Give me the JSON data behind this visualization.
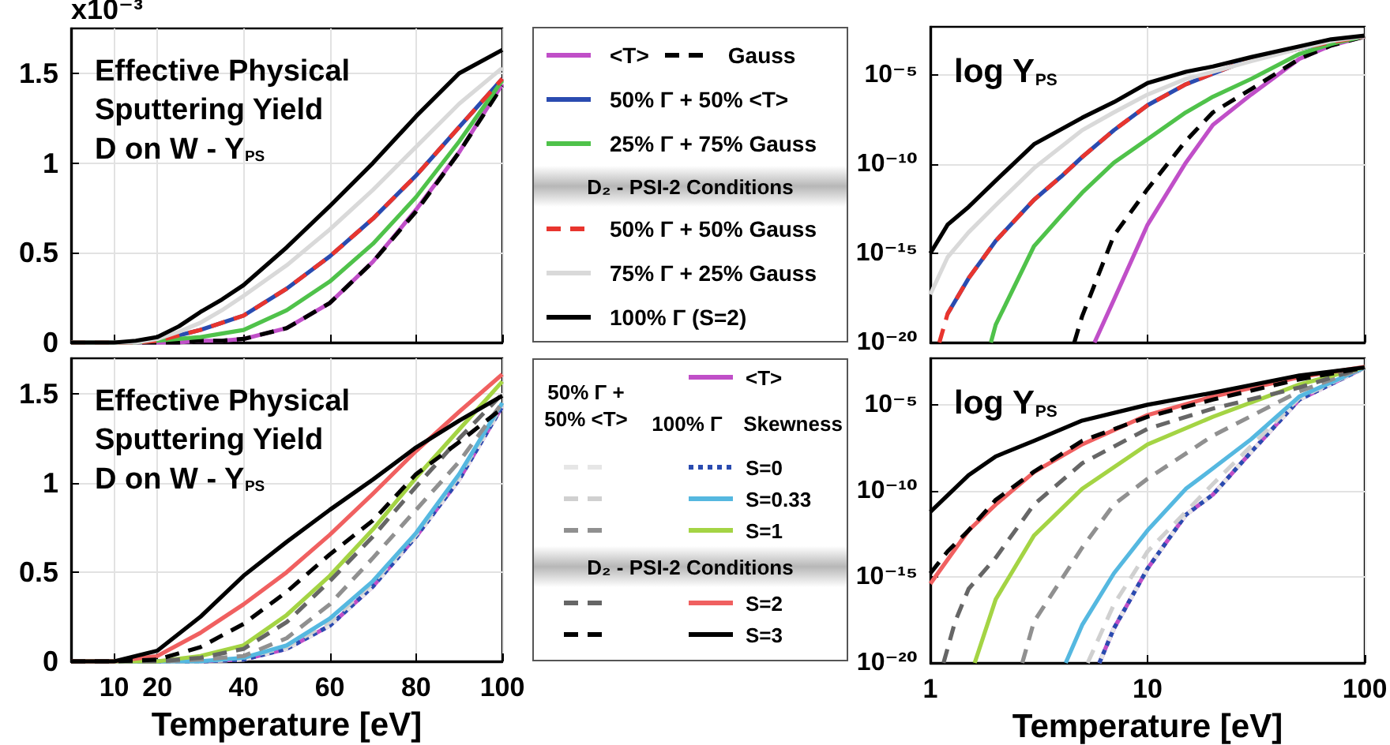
{
  "chart_data": [
    {
      "type": "line",
      "title": "Effective Physical\nSputtering Yield\nD on W - Y$_{PS}$",
      "ylabel": "x10⁻³",
      "x": [
        0,
        10,
        15,
        20,
        25,
        30,
        35,
        40,
        50,
        60,
        70,
        80,
        90,
        100
      ],
      "xlim": [
        0,
        100
      ],
      "xticks": [
        10,
        20,
        40,
        60,
        80,
        100
      ],
      "ylim": [
        0,
        1.75
      ],
      "yticks": [
        0,
        0.5,
        1,
        1.5
      ],
      "tick_labels": "y",
      "grid": true,
      "legend": "right",
      "annotations": [
        "D₂ - PSI-2 Conditions"
      ],
      "series": [
        {
          "name": "<T>",
          "color": "#c04fc8",
          "values": [
            0,
            0,
            0,
            0,
            0,
            0.01,
            0.01,
            0.02,
            0.08,
            0.22,
            0.45,
            0.74,
            1.06,
            1.44
          ]
        },
        {
          "name": "Gauss",
          "color": "#000000",
          "line_style": "dashed",
          "values": [
            0,
            0,
            0,
            0,
            0,
            0.01,
            0.01,
            0.02,
            0.08,
            0.22,
            0.45,
            0.73,
            1.06,
            1.43
          ]
        },
        {
          "name": "50% Γ + 50% <T>",
          "color": "#2a4bb0",
          "values": [
            null,
            null,
            null,
            0.01,
            0.04,
            0.07,
            0.11,
            0.15,
            0.3,
            0.48,
            0.69,
            0.93,
            1.2,
            1.47
          ]
        },
        {
          "name": "25% Γ + 75% Gauss",
          "color": "#4fc24a",
          "values": [
            0,
            0,
            0,
            0.01,
            0.02,
            0.03,
            0.05,
            0.07,
            0.18,
            0.34,
            0.55,
            0.81,
            1.12,
            1.46
          ]
        },
        {
          "name": "50% Γ + 50% Gauss",
          "color": "#e8352e",
          "line_style": "dashed",
          "values": [
            0,
            0,
            0,
            0.01,
            0.04,
            0.07,
            0.11,
            0.15,
            0.3,
            0.48,
            0.69,
            0.93,
            1.2,
            1.47
          ]
        },
        {
          "name": "75% Γ + 25% Gauss",
          "color": "#d9d9d9",
          "values": [
            0,
            0,
            0,
            0.02,
            0.06,
            0.11,
            0.18,
            0.26,
            0.43,
            0.63,
            0.85,
            1.09,
            1.33,
            1.53
          ]
        },
        {
          "name": "100% Γ (S=2)",
          "color": "#000000",
          "values": [
            0,
            0,
            0.01,
            0.03,
            0.09,
            0.17,
            0.24,
            0.32,
            0.53,
            0.76,
            1.0,
            1.26,
            1.5,
            1.63
          ]
        }
      ]
    },
    {
      "type": "line",
      "title": "log Y$_{PS}$",
      "log": "xy",
      "xlim": [
        1,
        100
      ],
      "xticks": [
        1,
        10,
        100
      ],
      "ylim": [
        1e-20,
        0.005
      ],
      "yticks": [
        {
          "value": 1e-20,
          "label": "10⁻²⁰"
        },
        {
          "value": 1e-15,
          "label": "10⁻¹⁵"
        },
        {
          "value": 1e-10,
          "label": "10⁻¹⁰"
        },
        {
          "value": 1e-05,
          "label": "10⁻⁵"
        }
      ],
      "tick_labels": "y",
      "grid": true,
      "series": [
        {
          "color": "#c04fc8",
          "x": [
            5.7,
            7,
            10,
            15,
            20,
            30,
            50,
            70,
            100
          ],
          "values": [
            1e-20,
            2.5e-18,
            4e-14,
            1.2e-10,
            1.6e-08,
            8e-07,
            8e-05,
            0.00045,
            0.00144
          ]
        },
        {
          "color": "#000000",
          "line_style": "dashed",
          "x": [
            4.6,
            5,
            7,
            10,
            15,
            20,
            30,
            50,
            70,
            100
          ],
          "values": [
            1e-20,
            3e-19,
            1e-14,
            4e-12,
            2e-09,
            8e-08,
            1.6e-06,
            8e-05,
            0.00045,
            0.00143
          ]
        },
        {
          "color": "#2a4bb0",
          "x": [
            1.2,
            1.5,
            2,
            3,
            4,
            5,
            7,
            10,
            15,
            20,
            30,
            50,
            70,
            100
          ],
          "values": [
            4e-19,
            4e-17,
            5e-15,
            1e-12,
            2e-11,
            2.5e-10,
            8e-09,
            2e-07,
            3e-06,
            1.2e-05,
            8e-05,
            0.0003,
            0.0007,
            0.00147
          ]
        },
        {
          "color": "#4fc24a",
          "x": [
            1.9,
            2,
            3,
            4,
            5,
            7,
            10,
            15,
            20,
            30,
            50,
            70,
            100
          ],
          "values": [
            1e-20,
            1e-19,
            2.5e-15,
            1.3e-13,
            2.5e-12,
            1.2e-10,
            2.5e-09,
            8e-08,
            6e-07,
            6e-06,
            0.00015,
            0.00055,
            0.00146
          ]
        },
        {
          "color": "#e8352e",
          "line_style": "dashed",
          "x": [
            1.1,
            1.2,
            1.5,
            2,
            3,
            4,
            5,
            7,
            10,
            15,
            20,
            30,
            50,
            70,
            100
          ],
          "values": [
            1e-20,
            4e-19,
            4e-17,
            5e-15,
            1e-12,
            2e-11,
            2.5e-10,
            8e-09,
            2e-07,
            3e-06,
            1.2e-05,
            8e-05,
            0.0003,
            0.0007,
            0.00147
          ]
        },
        {
          "color": "#d9d9d9",
          "x": [
            1,
            1.2,
            1.5,
            2,
            3,
            5,
            7,
            10,
            15,
            20,
            30,
            50,
            70,
            100
          ],
          "values": [
            5e-18,
            6e-16,
            1.5e-14,
            5e-13,
            6e-11,
            8e-09,
            8e-08,
            8e-07,
            6e-06,
            1.5e-05,
            6e-05,
            0.0003,
            0.0008,
            0.0015
          ]
        },
        {
          "color": "#000000",
          "x": [
            1,
            1.2,
            1.5,
            2,
            3,
            5,
            7,
            10,
            15,
            20,
            30,
            50,
            70,
            100
          ],
          "values": [
            1e-15,
            4e-14,
            4e-13,
            1.2e-11,
            1.3e-09,
            4e-08,
            3e-07,
            3.5e-06,
            1.5e-05,
            3e-05,
            0.0001,
            0.0004,
            0.001,
            0.0016
          ]
        }
      ]
    },
    {
      "type": "line",
      "title": "Effective Physical\nSputtering Yield\nD on W - Y$_{PS}$",
      "xlabel": "Temperature [eV]",
      "x": [
        0,
        10,
        20,
        30,
        40,
        50,
        60,
        70,
        80,
        90,
        100
      ],
      "xlim": [
        0,
        100
      ],
      "xticks": [
        10,
        20,
        40,
        60,
        80,
        100
      ],
      "ylim": [
        0,
        1.7
      ],
      "yticks": [
        0,
        0.5,
        1,
        1.5
      ],
      "grid": true,
      "legend": "right",
      "annotations": [
        "50% Γ +\n50% <T>",
        "100% Γ",
        "Skewness",
        "D₂ - PSI-2 Conditions"
      ],
      "series": [
        {
          "name": "<T>",
          "color": "#c04fc8",
          "values": [
            null,
            null,
            null,
            0,
            0.01,
            0.07,
            0.2,
            0.42,
            0.7,
            1.02,
            1.43
          ]
        },
        {
          "color": "#e6e6e6",
          "line_style": "dashed",
          "values": [
            0,
            0,
            0,
            0,
            0.01,
            0.07,
            0.2,
            0.42,
            0.7,
            1.02,
            1.43
          ]
        },
        {
          "name": "S=0",
          "color": "#2a4bb0",
          "line_style": "dotted",
          "values": [
            0,
            0,
            0,
            0,
            0.01,
            0.07,
            0.2,
            0.42,
            0.7,
            1.02,
            1.43
          ]
        },
        {
          "color": "#d0d0d0",
          "line_style": "dashed",
          "values": [
            0,
            0,
            0,
            0,
            0.02,
            0.08,
            0.22,
            0.44,
            0.71,
            1.04,
            1.44
          ]
        },
        {
          "name": "S=0.33",
          "color": "#55b8e0",
          "values": [
            0,
            0,
            0,
            0,
            0.02,
            0.09,
            0.24,
            0.45,
            0.72,
            1.05,
            1.45
          ]
        },
        {
          "color": "#909090",
          "line_style": "dashed",
          "values": [
            0,
            0,
            0,
            0.01,
            0.03,
            0.13,
            0.32,
            0.58,
            0.85,
            1.12,
            1.45
          ]
        },
        {
          "name": "S=1",
          "color": "#a4d444",
          "values": [
            0,
            0,
            0,
            0.03,
            0.09,
            0.26,
            0.48,
            0.74,
            1.03,
            1.3,
            1.57
          ]
        },
        {
          "color": "#666666",
          "line_style": "dashed",
          "values": [
            0,
            0,
            0,
            0.02,
            0.07,
            0.22,
            0.45,
            0.7,
            0.98,
            1.25,
            1.5
          ]
        },
        {
          "name": "S=2",
          "color": "#f06060",
          "values": [
            0,
            0,
            0.03,
            0.16,
            0.32,
            0.5,
            0.71,
            0.94,
            1.18,
            1.4,
            1.61
          ]
        },
        {
          "color": "#000000",
          "line_style": "dashed",
          "values": [
            0,
            0,
            0.01,
            0.08,
            0.21,
            0.39,
            0.6,
            0.79,
            1.05,
            1.23,
            1.42
          ]
        },
        {
          "name": "S=3",
          "color": "#000000",
          "values": [
            0,
            0,
            0.06,
            0.25,
            0.48,
            0.67,
            0.85,
            1.02,
            1.2,
            1.35,
            1.49
          ]
        }
      ]
    },
    {
      "type": "line",
      "title": "log Y$_{PS}$",
      "xlabel": "Temperature [eV]",
      "log": "xy",
      "xlim": [
        1,
        100
      ],
      "xticks": [
        1,
        10,
        100
      ],
      "ylim": [
        1e-20,
        0.005
      ],
      "yticks": [
        {
          "value": 1e-20,
          "label": "10⁻²⁰"
        },
        {
          "value": 1e-15,
          "label": "10⁻¹⁵"
        },
        {
          "value": 1e-10,
          "label": "10⁻¹⁰"
        },
        {
          "value": 1e-05,
          "label": "10⁻⁵"
        }
      ],
      "grid": true,
      "series": [
        {
          "color": "#c04fc8",
          "x": [
            6,
            7,
            10,
            15,
            20,
            30,
            50,
            100
          ],
          "values": [
            1e-20,
            1e-18,
            3e-15,
            4e-12,
            6e-11,
            1.8e-08,
            2e-05,
            0.00143
          ]
        },
        {
          "color": "#e6e6e6",
          "line_style": "dashed",
          "x": [
            6,
            7,
            10,
            15,
            20,
            30,
            50,
            100
          ],
          "values": [
            1e-20,
            1e-18,
            3e-15,
            4e-12,
            6e-11,
            1.8e-08,
            2e-05,
            0.00143
          ]
        },
        {
          "color": "#2a4bb0",
          "line_style": "dotted",
          "x": [
            6,
            7,
            10,
            15,
            20,
            30,
            50,
            100
          ],
          "values": [
            1e-20,
            1e-18,
            3e-15,
            4e-12,
            6e-11,
            1.8e-08,
            2e-05,
            0.00143
          ]
        },
        {
          "color": "#d0d0d0",
          "line_style": "dashed",
          "x": [
            5.3,
            7,
            10,
            20,
            30,
            50,
            100
          ],
          "values": [
            1e-20,
            2.5e-17,
            3e-14,
            2.5e-10,
            4e-08,
            2.5e-05,
            0.00144
          ]
        },
        {
          "color": "#55b8e0",
          "x": [
            4.2,
            5,
            7,
            10,
            15,
            20,
            30,
            50,
            100
          ],
          "values": [
            1e-20,
            1.6e-18,
            1.6e-15,
            5e-13,
            1.3e-10,
            2e-09,
            1e-07,
            3e-05,
            0.00145
          ]
        },
        {
          "color": "#909090",
          "line_style": "dashed",
          "x": [
            2.65,
            3,
            5,
            7,
            10,
            20,
            50,
            100
          ],
          "values": [
            1e-20,
            2.5e-18,
            5e-14,
            1.6e-11,
            5e-10,
            1.6e-07,
            6e-05,
            0.00145
          ]
        },
        {
          "color": "#a4d444",
          "x": [
            1.6,
            2,
            3,
            5,
            10,
            20,
            50,
            100
          ],
          "values": [
            1e-20,
            5e-17,
            2.5e-13,
            1.3e-10,
            5e-08,
            2e-06,
            0.00015,
            0.00157
          ]
        },
        {
          "color": "#666666",
          "line_style": "dashed",
          "x": [
            1.15,
            1.3,
            1.5,
            2,
            3,
            5,
            10,
            20,
            50,
            100
          ],
          "values": [
            1e-20,
            2.5e-18,
            2e-16,
            1.3e-14,
            1.6e-11,
            4e-09,
            4e-07,
            6e-06,
            0.0001,
            0.0015
          ]
        },
        {
          "color": "#f06060",
          "x": [
            1,
            1.2,
            1.5,
            2,
            3,
            5,
            10,
            20,
            50,
            100
          ],
          "values": [
            4e-16,
            1e-14,
            5e-13,
            1.6e-11,
            1.2e-09,
            5e-08,
            2.5e-06,
            3e-05,
            0.0004,
            0.00161
          ]
        },
        {
          "color": "#000000",
          "line_style": "dashed",
          "x": [
            1,
            1.2,
            1.5,
            2,
            3,
            5,
            10,
            20,
            50,
            100
          ],
          "values": [
            1.6e-15,
            3e-14,
            5e-13,
            3e-11,
            1.3e-09,
            8e-08,
            2e-06,
            2e-05,
            0.0003,
            0.00142
          ]
        },
        {
          "color": "#000000",
          "x": [
            1,
            1.5,
            2,
            3,
            5,
            10,
            20,
            50,
            100
          ],
          "values": [
            6e-12,
            8e-10,
            1e-08,
            8e-08,
            1.2e-06,
            1e-05,
            5e-05,
            0.0005,
            0.00149
          ]
        }
      ]
    }
  ]
}
